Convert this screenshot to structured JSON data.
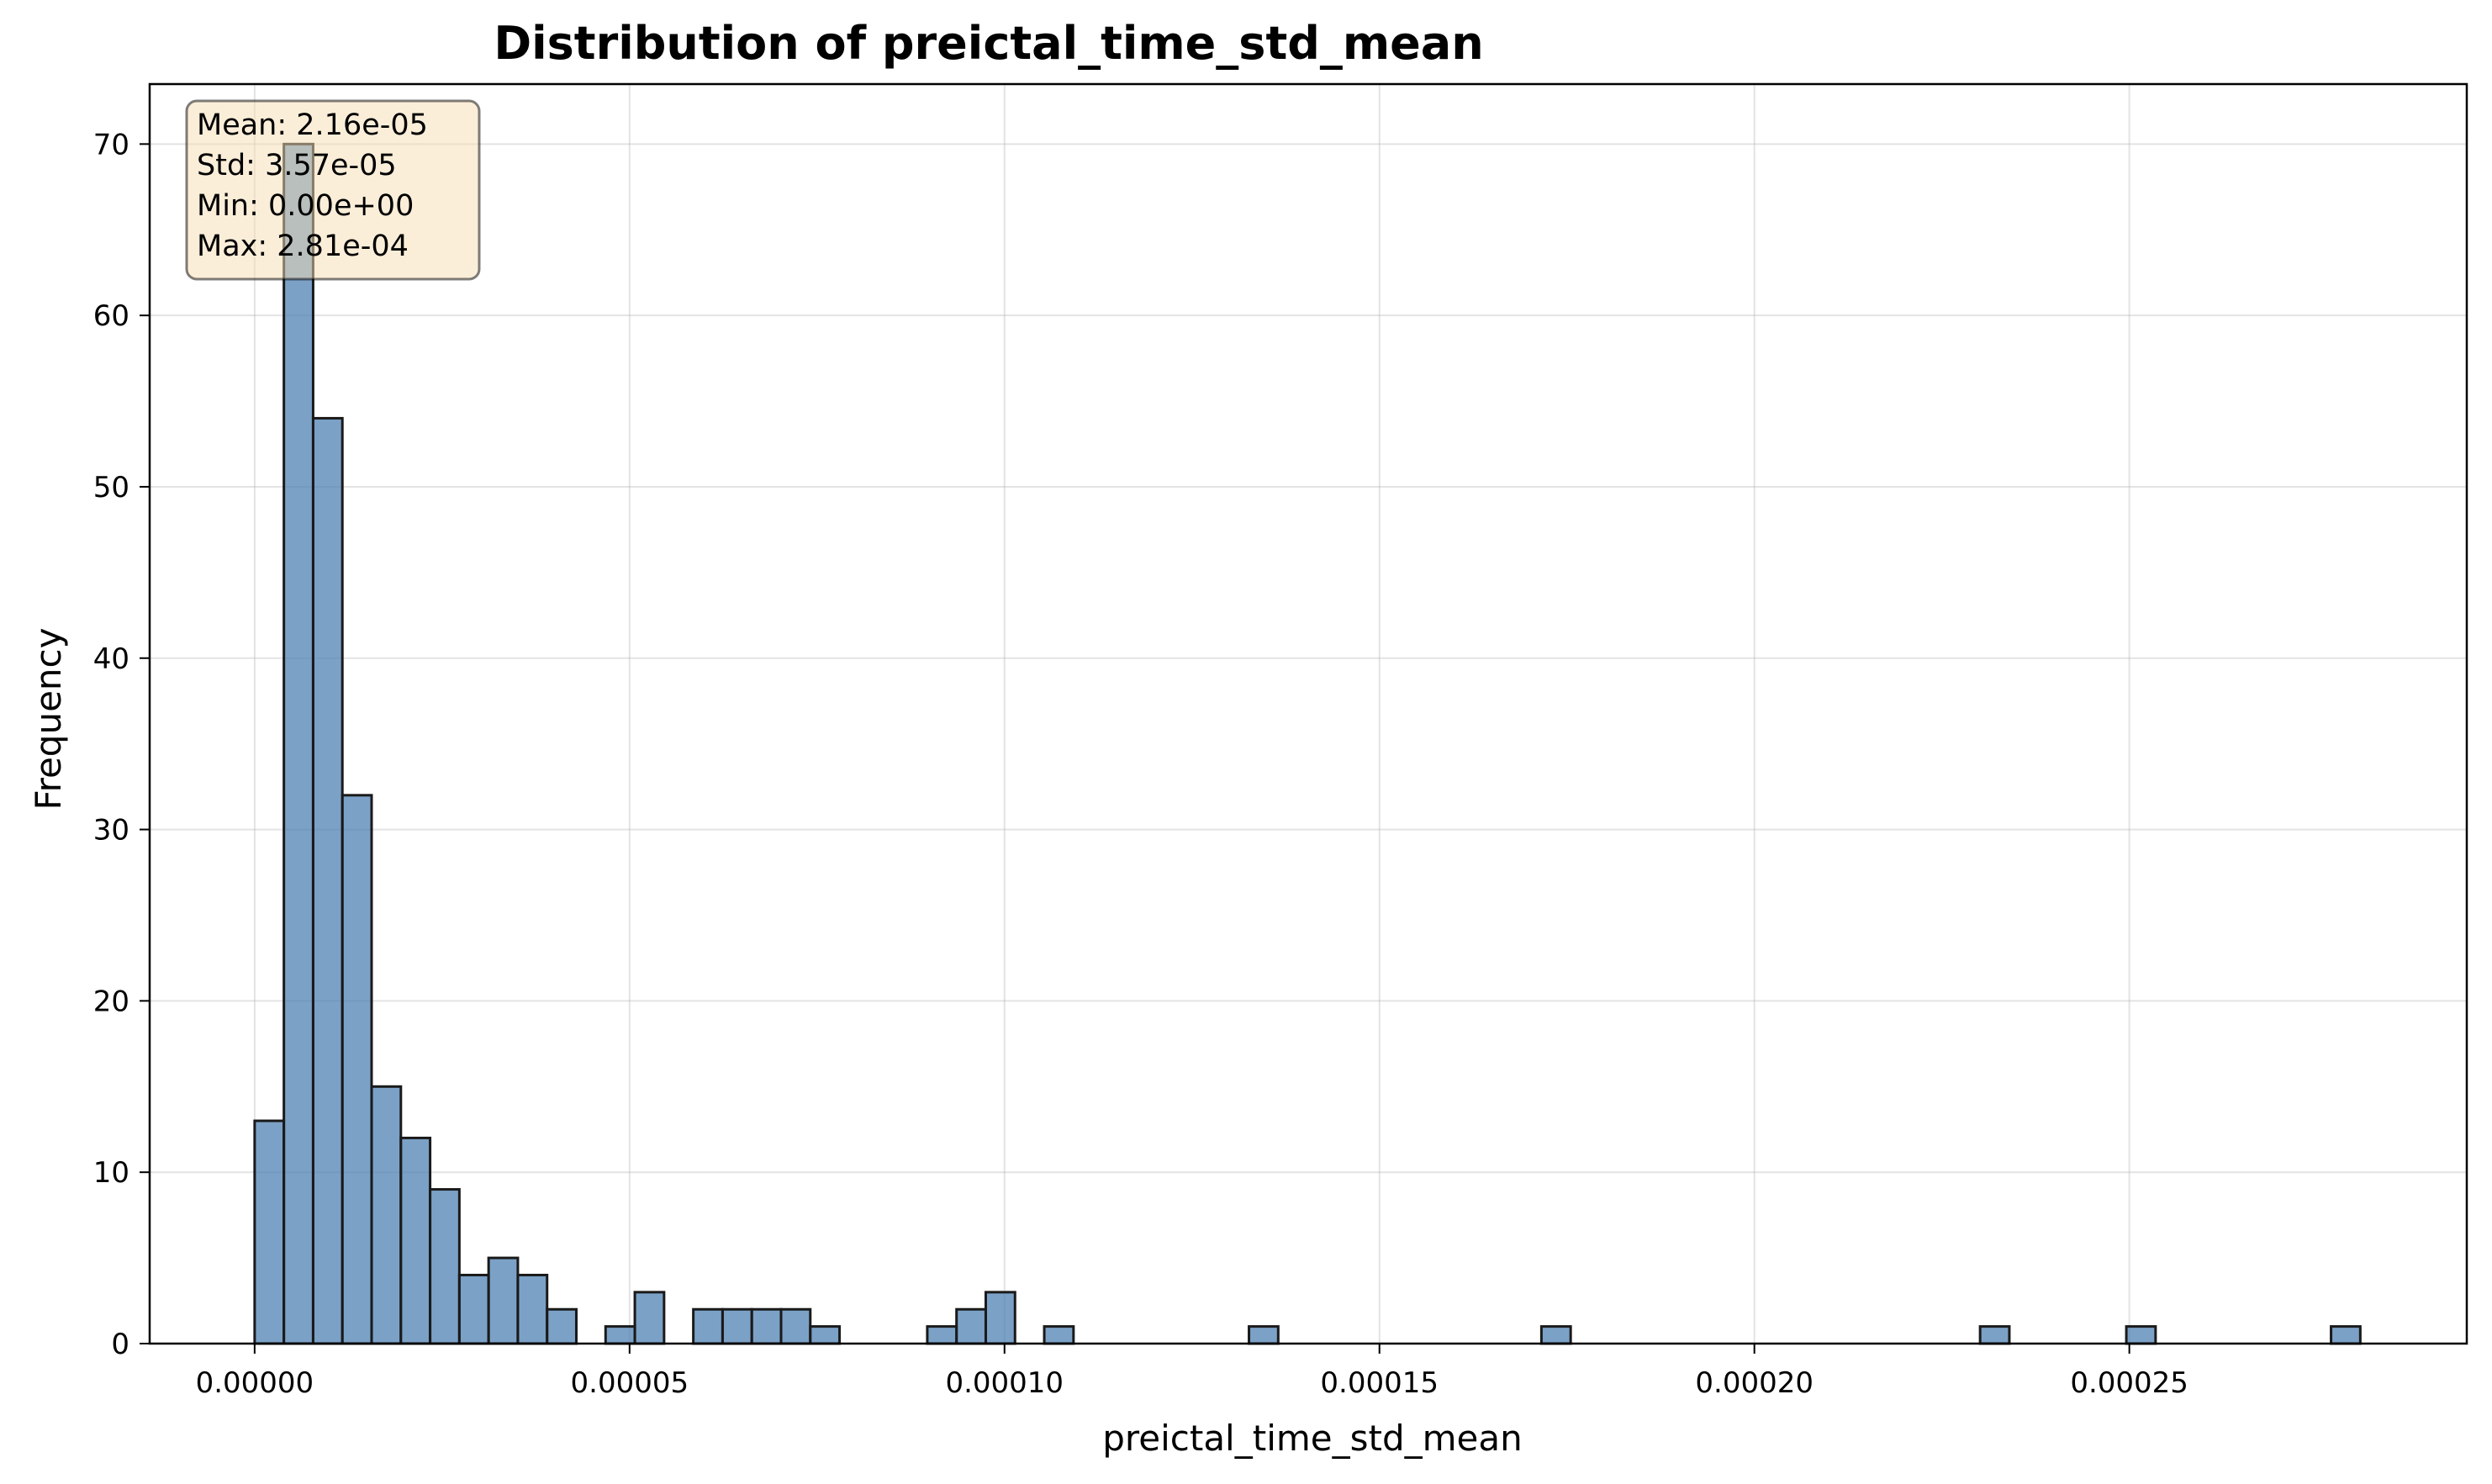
{
  "chart_data": {
    "type": "bar",
    "title": "Distribution of preictal_time_std_mean",
    "xlabel": "preictal_time_std_mean",
    "ylabel": "Frequency",
    "xlim": [
      -1.4e-05,
      0.000295
    ],
    "ylim": [
      0,
      73.5
    ],
    "x_ticks": [
      0,
      5e-05,
      0.0001,
      0.00015,
      0.0002,
      0.00025
    ],
    "x_tick_labels": [
      "0.00000",
      "0.00005",
      "0.00010",
      "0.00015",
      "0.00020",
      "0.00025"
    ],
    "y_ticks": [
      0,
      10,
      20,
      30,
      40,
      50,
      60,
      70
    ],
    "y_tick_labels": [
      "0",
      "10",
      "20",
      "30",
      "40",
      "50",
      "60",
      "70"
    ],
    "grid": true,
    "bin_start": 0,
    "bin_width": 3.9e-06,
    "values": [
      13,
      70,
      54,
      32,
      15,
      12,
      9,
      4,
      5,
      4,
      2,
      0,
      1,
      3,
      0,
      2,
      2,
      2,
      2,
      1,
      0,
      0,
      0,
      1,
      2,
      3,
      0,
      1,
      0,
      0,
      0,
      0,
      0,
      0,
      1,
      0,
      0,
      0,
      0,
      0,
      0,
      0,
      0,
      0,
      1,
      0,
      0,
      0,
      0,
      0,
      0,
      0,
      0,
      0,
      0,
      0,
      0,
      0,
      0,
      1,
      0,
      0,
      0,
      0,
      1,
      0,
      0,
      0,
      0,
      0,
      0,
      1
    ],
    "color": "#4f81b3",
    "edge_color": "#1a1a1a",
    "stats_box": {
      "lines": [
        "Mean: 2.16e-05",
        "Std: 3.57e-05",
        "Min: 0.00e+00",
        "Max: 2.81e-04"
      ],
      "background": "#f5deb3",
      "placement": "top-left"
    }
  }
}
